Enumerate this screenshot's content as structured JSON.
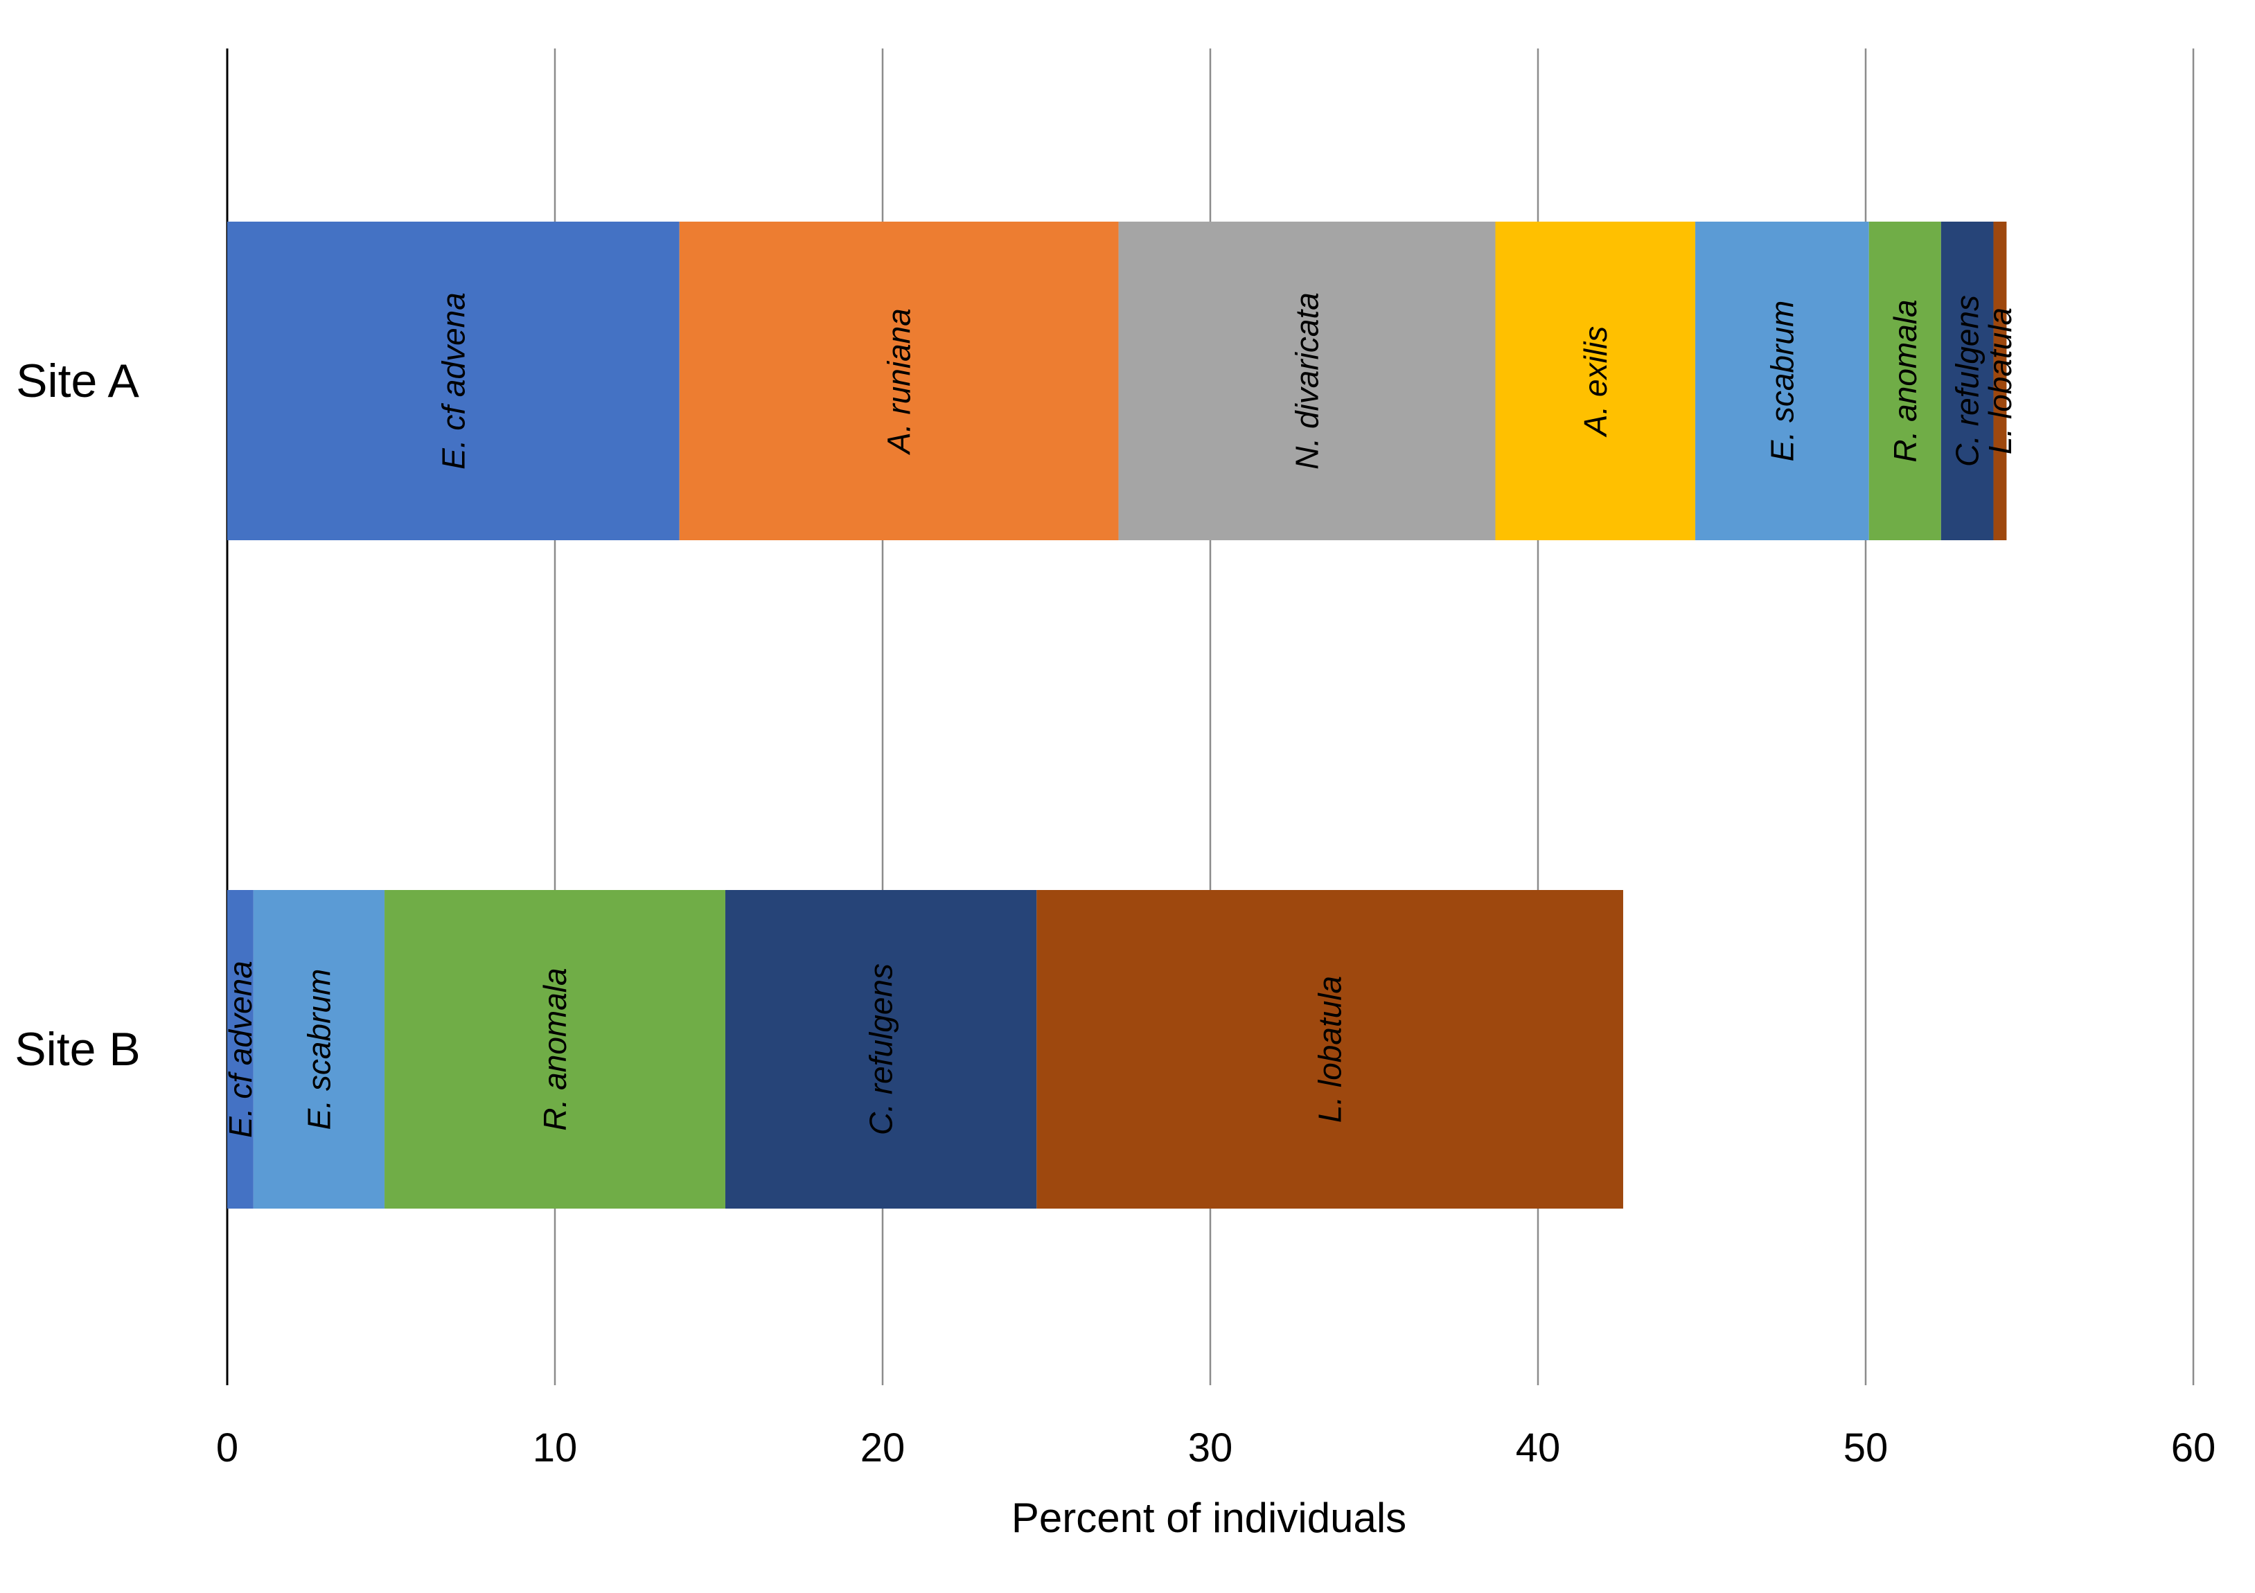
{
  "chart_data": {
    "type": "bar",
    "orientation": "horizontal",
    "stacked": true,
    "title": "",
    "xlabel": "Percent of individuals",
    "ylabel": "",
    "xlim": [
      0,
      60
    ],
    "xticks": [
      0,
      10,
      20,
      30,
      40,
      50,
      60
    ],
    "grid": "vertical",
    "categories": [
      "Site A",
      "Site B"
    ],
    "series": [
      {
        "name": "E. cf advena",
        "color": "#4472C4",
        "values": [
          13.8,
          0.8
        ]
      },
      {
        "name": "A. runiana",
        "color": "#ED7D31",
        "values": [
          13.4,
          0
        ]
      },
      {
        "name": "N. divaricata",
        "color": "#A5A5A5",
        "values": [
          11.5,
          0
        ]
      },
      {
        "name": "A. exilis",
        "color": "#FFC000",
        "values": [
          6.1,
          0
        ]
      },
      {
        "name": "E. scabrum",
        "color": "#5B9BD5",
        "values": [
          5.3,
          4.0
        ]
      },
      {
        "name": "R. anomala",
        "color": "#70AD47",
        "values": [
          2.2,
          10.4
        ]
      },
      {
        "name": "C. refulgens",
        "color": "#264478",
        "values": [
          1.6,
          9.5
        ]
      },
      {
        "name": "L. lobatula",
        "color": "#9E480E",
        "values": [
          0.4,
          17.9
        ]
      }
    ]
  }
}
